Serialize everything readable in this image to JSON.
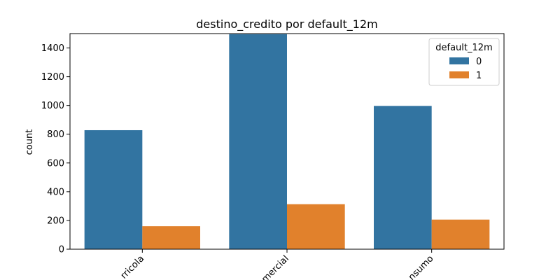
{
  "chart_data": {
    "type": "bar",
    "title": "destino_credito por default_12m",
    "xlabel": "",
    "ylabel": "count",
    "categories": [
      "agricola",
      "comercial",
      "consumo"
    ],
    "categories_visible": [
      "rricola",
      "mercial",
      "nsumo"
    ],
    "series": [
      {
        "name": "0",
        "values": [
          828,
          1496,
          997
        ],
        "color": "#3274a1"
      },
      {
        "name": "1",
        "values": [
          160,
          313,
          206
        ],
        "color": "#e1812c"
      }
    ],
    "ylim": [
      0,
      1500
    ],
    "yticks": [
      0,
      200,
      400,
      600,
      800,
      1000,
      1200,
      1400
    ],
    "grid": false,
    "legend": {
      "title": "default_12m",
      "placement": "top-right"
    }
  }
}
